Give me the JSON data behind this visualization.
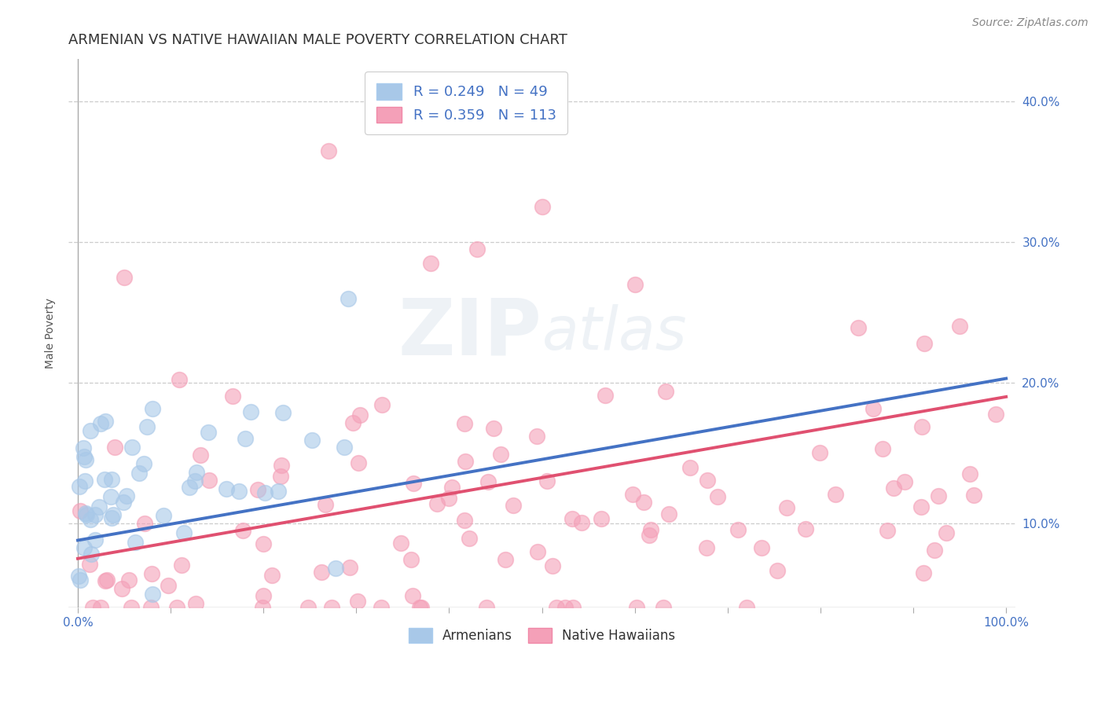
{
  "title": "ARMENIAN VS NATIVE HAWAIIAN MALE POVERTY CORRELATION CHART",
  "source": "Source: ZipAtlas.com",
  "ylabel": "Male Poverty",
  "xlim": [
    -0.01,
    1.01
  ],
  "ylim": [
    0.04,
    0.43
  ],
  "armenian_R": 0.249,
  "armenian_N": 49,
  "hawaiian_R": 0.359,
  "hawaiian_N": 113,
  "armenian_color": "#a8c8e8",
  "hawaiian_color": "#f4a0b8",
  "armenian_line_color": "#4472c4",
  "hawaiian_line_color": "#e05070",
  "watermark_zip": "ZIP",
  "watermark_atlas": "atlas",
  "legend_armenian_label": "Armenians",
  "legend_hawaiian_label": "Native Hawaiians",
  "background_color": "#ffffff",
  "grid_color": "#cccccc",
  "title_fontsize": 13,
  "axis_label_fontsize": 10,
  "tick_fontsize": 11,
  "source_fontsize": 10
}
